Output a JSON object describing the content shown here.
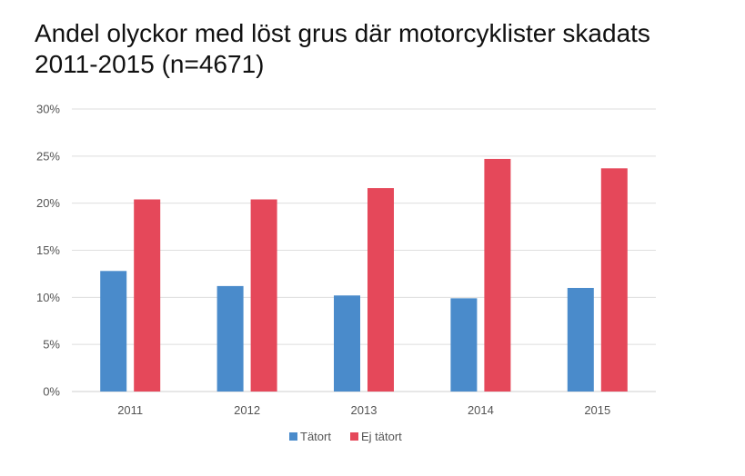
{
  "title_line1": "Andel olyckor med löst grus där motorcyklister skadats",
  "title_line2": "2011-2015 (n=4671)",
  "chart_data": {
    "type": "bar",
    "title": "Andel olyckor med löst grus där motorcyklister skadats 2011-2015 (n=4671)",
    "categories": [
      "2011",
      "2012",
      "2013",
      "2014",
      "2015"
    ],
    "series": [
      {
        "name": "Tätort",
        "values": [
          12.8,
          11.2,
          10.2,
          9.9,
          11.0
        ],
        "color": "#4a8bcb"
      },
      {
        "name": "Ej tätort",
        "values": [
          20.4,
          20.4,
          21.6,
          24.7,
          23.7
        ],
        "color": "#e5485a"
      }
    ],
    "ylim": [
      0,
      30
    ],
    "yticks": [
      0,
      5,
      10,
      15,
      20,
      25,
      30
    ],
    "ytick_labels": [
      "0%",
      "5%",
      "10%",
      "15%",
      "20%",
      "25%",
      "30%"
    ],
    "xlabel": "",
    "ylabel": "",
    "grid": true,
    "legend_position": "bottom"
  }
}
